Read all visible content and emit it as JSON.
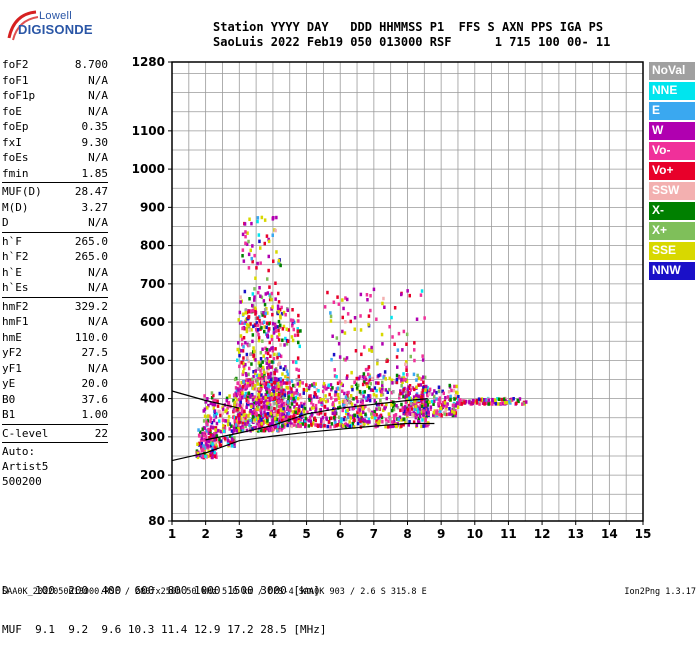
{
  "logo": {
    "line1": "Lowell",
    "line2": "DIGISONDE"
  },
  "header": {
    "line1": "Station YYYY DAY   DDD HHMMSS P1  FFS S AXN PPS IGA PS",
    "line2": "SaoLuis 2022 Feb19 050 013000 RSF      1 715 100 00- 11"
  },
  "params": [
    {
      "key": "foF2",
      "value": "8.700"
    },
    {
      "key": "foF1",
      "value": "N/A"
    },
    {
      "key": "foF1p",
      "value": "N/A"
    },
    {
      "key": "foE",
      "value": "N/A"
    },
    {
      "key": "foEp",
      "value": "0.35"
    },
    {
      "key": "fxI",
      "value": "9.30"
    },
    {
      "key": "foEs",
      "value": "N/A"
    },
    {
      "key": "fmin",
      "value": "1.85"
    },
    {
      "sep": true
    },
    {
      "key": "MUF(D)",
      "value": "28.47"
    },
    {
      "key": "M(D)",
      "value": "3.27"
    },
    {
      "key": "D",
      "value": "N/A"
    },
    {
      "sep": true
    },
    {
      "key": "h`F",
      "value": "265.0"
    },
    {
      "key": "h`F2",
      "value": "265.0"
    },
    {
      "key": "h`E",
      "value": "N/A"
    },
    {
      "key": "h`Es",
      "value": "N/A"
    },
    {
      "sep": true
    },
    {
      "key": "hmF2",
      "value": "329.2"
    },
    {
      "key": "hmF1",
      "value": "N/A"
    },
    {
      "key": "hmE",
      "value": "110.0"
    },
    {
      "key": "yF2",
      "value": "27.5"
    },
    {
      "key": "yF1",
      "value": "N/A"
    },
    {
      "key": "yE",
      "value": "20.0"
    },
    {
      "key": "B0",
      "value": "37.6"
    },
    {
      "key": "B1",
      "value": "1.00"
    },
    {
      "sep": true
    },
    {
      "key": "C-level",
      "value": "22"
    },
    {
      "sep": true
    },
    {
      "text": "Auto:"
    },
    {
      "text": "Artist5"
    },
    {
      "text": "500200"
    }
  ],
  "legend": [
    {
      "label": "NoVal",
      "color": "#a0a0a0"
    },
    {
      "label": "NNE",
      "color": "#00e5ee"
    },
    {
      "label": "E",
      "color": "#3aa8f0"
    },
    {
      "label": "W",
      "color": "#b000b0"
    },
    {
      "label": "Vo-",
      "color": "#f0309a"
    },
    {
      "label": "Vo+",
      "color": "#e8002a"
    },
    {
      "label": "SSW",
      "color": "#f3b0b0"
    },
    {
      "label": "X-",
      "color": "#008000"
    },
    {
      "label": "X+",
      "color": "#7fbf5a"
    },
    {
      "label": "SSE",
      "color": "#d8d800"
    },
    {
      "label": "NNW",
      "color": "#1a10c8"
    }
  ],
  "chart_data": {
    "type": "scatter",
    "title": "",
    "xlabel": "",
    "ylabel": "",
    "xlim": [
      1,
      15
    ],
    "ylim": [
      80,
      1280
    ],
    "x_ticks": [
      "1",
      "2",
      "3",
      "4",
      "5",
      "6",
      "7",
      "8",
      "9",
      "10",
      "11",
      "12",
      "13",
      "14",
      "15"
    ],
    "y_ticks": [
      {
        "value": 80,
        "label": "80"
      },
      {
        "value": 200,
        "label": "200"
      },
      {
        "value": 300,
        "label": "300"
      },
      {
        "value": 400,
        "label": "400"
      },
      {
        "value": 500,
        "label": "500"
      },
      {
        "value": 600,
        "label": "600"
      },
      {
        "value": 700,
        "label": "700"
      },
      {
        "value": 800,
        "label": "800"
      },
      {
        "value": 900,
        "label": "900"
      },
      {
        "value": 1000,
        "label": "1000"
      },
      {
        "value": 1100,
        "label": "1100"
      },
      {
        "value": 1280,
        "label": "1280"
      }
    ],
    "grid": true,
    "legend_position": "right",
    "echo_clusters": [
      {
        "x": [
          1.7,
          2.3
        ],
        "y": [
          250,
          330
        ],
        "n": 140
      },
      {
        "x": [
          1.9,
          2.9
        ],
        "y": [
          280,
          420
        ],
        "n": 160
      },
      {
        "x": [
          2.8,
          4.3
        ],
        "y": [
          320,
          460
        ],
        "n": 420
      },
      {
        "x": [
          2.9,
          4.8
        ],
        "y": [
          330,
          650
        ],
        "n": 360
      },
      {
        "x": [
          3.0,
          4.2
        ],
        "y": [
          400,
          880
        ],
        "n": 260
      },
      {
        "x": [
          4.2,
          6.5
        ],
        "y": [
          330,
          450
        ],
        "n": 360
      },
      {
        "x": [
          6.5,
          8.6
        ],
        "y": [
          330,
          470
        ],
        "n": 320
      },
      {
        "x": [
          7.8,
          9.5
        ],
        "y": [
          360,
          440
        ],
        "n": 220
      },
      {
        "x": [
          9.5,
          11.5
        ],
        "y": [
          390,
          405
        ],
        "n": 110
      },
      {
        "x": [
          5.5,
          8.5
        ],
        "y": [
          420,
          700
        ],
        "n": 120
      }
    ],
    "trace_lines": [
      {
        "name": "lower",
        "x": [
          1.0,
          2.0,
          3.0,
          4.0,
          5.0,
          6.0,
          7.0,
          8.0,
          8.8
        ],
        "y": [
          238,
          258,
          290,
          302,
          312,
          320,
          328,
          335,
          335
        ]
      },
      {
        "name": "upper",
        "x": [
          1.0,
          2.0,
          3.0
        ],
        "y": [
          420,
          395,
          375
        ]
      },
      {
        "name": "profile",
        "x": [
          2.0,
          3.0,
          4.0,
          5.0,
          6.0,
          7.0,
          8.0,
          8.6
        ],
        "y": [
          292,
          310,
          330,
          360,
          375,
          385,
          395,
          400
        ]
      }
    ]
  },
  "muf_table": {
    "d_row": "D    100  200  400  600  800 1000 1500 3000 [km]",
    "muf_row": "MUF  9.1  9.2  9.6 10.3 11.4 12.9 17.2 28.5 [MHz]"
  },
  "footer": {
    "left": "SAA0K_2022050013000.RSF / 280fx256h 50 kHz 5.0 km / DPS-4 SAA0K 903 / 2.6 S 315.8 E",
    "right": "Ion2Png 1.3.17"
  }
}
